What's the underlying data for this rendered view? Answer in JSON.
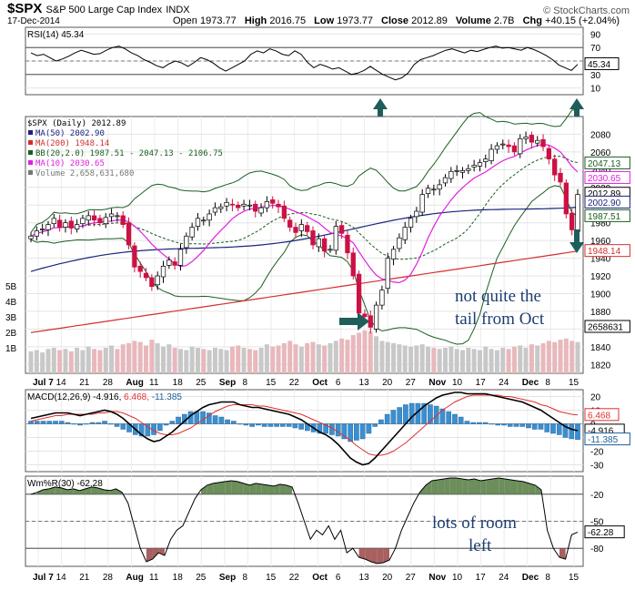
{
  "header": {
    "symbol": "$SPX",
    "name": "S&P 500 Large Cap Index",
    "exchange": "INDX",
    "date": "17-Dec-2014",
    "open_label": "Open",
    "open": "1973.77",
    "high_label": "High",
    "high": "2016.75",
    "low_label": "Low",
    "low": "1973.77",
    "close_label": "Close",
    "close": "2012.89",
    "volume_label": "Volume",
    "volume": "2.7B",
    "chg_label": "Chg",
    "chg": "+40.15 (+2.04%)",
    "brand": "© StockCharts.com"
  },
  "colors": {
    "up": "#ffffff",
    "down": "#cc1144",
    "ma50": "#1a237e",
    "ma200": "#d32f2f",
    "bb": "#1b5e20",
    "ma10": "#e020e0",
    "volume": "#c8c8c8",
    "histogram": "#3a8fd0",
    "wm_fill": "#6b8e5a",
    "wm_fill_low": "#a86060",
    "arrow": "#1e5e5a"
  },
  "chart_data": [
    {
      "type": "line",
      "title": "RSI(14) 45.34",
      "yticks": [
        90,
        70,
        50,
        30,
        10
      ],
      "ylim": [
        0,
        100
      ],
      "value_label": "45.34",
      "values": [
        62,
        58,
        60,
        55,
        50,
        53,
        57,
        62,
        66,
        63,
        60,
        61,
        66,
        70,
        72,
        68,
        62,
        58,
        52,
        48,
        43,
        40,
        46,
        50,
        47,
        42,
        48,
        55,
        52,
        47,
        40,
        35,
        40,
        45,
        50,
        60,
        65,
        62,
        68,
        65,
        60,
        58,
        65,
        60,
        48,
        40,
        45,
        42,
        38,
        40,
        35,
        30,
        32,
        36,
        42,
        36,
        30,
        26,
        22,
        25,
        32,
        45,
        52,
        55,
        58,
        62,
        66,
        68,
        65,
        62,
        66,
        64,
        67,
        70,
        72,
        69,
        70,
        68,
        66,
        70,
        67,
        63,
        58,
        52,
        44,
        40,
        36,
        45
      ]
    },
    {
      "type": "candlestick",
      "title": "$SPX (Daily) 2012.89",
      "legend": [
        "MA(50) 2002.90",
        "MA(200) 1948.14",
        "BB(20,2.0) 1987.51 - 2047.13 - 2106.75",
        "MA(10) 2030.65",
        "Volume 2,658,631,680"
      ],
      "ylim": [
        1810,
        2100
      ],
      "yticks": [
        2080,
        2060,
        2040,
        2020,
        2000,
        1980,
        1960,
        1940,
        1920,
        1900,
        1880,
        1860,
        1840,
        1820
      ],
      "volume_ticks": [
        "5B",
        "4B",
        "3B",
        "2B",
        "1B"
      ],
      "last_value_labels": [
        {
          "text": "2047.13",
          "value": 2047.13,
          "color": "#1b5e20"
        },
        {
          "text": "2030.65",
          "value": 2030.65,
          "color": "#e020e0"
        },
        {
          "text": "2012.89",
          "value": 2012.89,
          "color": "#000000"
        },
        {
          "text": "2002.90",
          "value": 2002.9,
          "color": "#1a237e"
        },
        {
          "text": "1987.51",
          "value": 1987.51,
          "color": "#1b5e20"
        },
        {
          "text": "1948.14",
          "value": 1948.14,
          "color": "#d32f2f"
        }
      ],
      "volume_label": "2658631",
      "closes": [
        1965,
        1971,
        1973,
        1978,
        1985,
        1975,
        1980,
        1974,
        1978,
        1985,
        1988,
        1983,
        1980,
        1986,
        1990,
        1988,
        1978,
        1955,
        1930,
        1925,
        1918,
        1908,
        1920,
        1931,
        1938,
        1932,
        1950,
        1965,
        1975,
        1985,
        1983,
        1990,
        1997,
        1998,
        2003,
        2000,
        1997,
        2001,
        2000,
        1993,
        1997,
        2004,
        2002,
        1998,
        1985,
        1975,
        1969,
        1978,
        1970,
        1955,
        1962,
        1948,
        1950,
        1976,
        1968,
        1946,
        1920,
        1878,
        1874,
        1862,
        1887,
        1904,
        1940,
        1950,
        1963,
        1975,
        1985,
        1993,
        2012,
        2019,
        2018,
        2023,
        2031,
        2038,
        2039,
        2039,
        2041,
        2045,
        2048,
        2052,
        2063,
        2067,
        2069,
        2066,
        2060,
        2075,
        2077,
        2071,
        2073,
        2066,
        2052,
        2034,
        2026,
        1990,
        1972,
        2012
      ],
      "volumes": [
        1.9,
        2.0,
        1.8,
        2.1,
        2.2,
        2.0,
        2.1,
        1.9,
        2.2,
        2.0,
        2.3,
        2.1,
        2.0,
        2.2,
        2.4,
        2.1,
        2.5,
        2.6,
        2.8,
        2.7,
        2.4,
        2.9,
        2.6,
        2.3,
        2.5,
        2.2,
        2.1,
        2.0,
        2.3,
        2.2,
        2.1,
        2.0,
        2.2,
        2.1,
        2.0,
        2.3,
        2.4,
        2.2,
        2.1,
        2.0,
        2.2,
        2.5,
        2.3,
        2.4,
        2.6,
        2.8,
        2.5,
        2.3,
        2.6,
        2.7,
        2.5,
        2.4,
        2.6,
        2.8,
        3.0,
        2.9,
        3.3,
        3.5,
        3.7,
        3.6,
        3.2,
        2.8,
        2.7,
        2.6,
        2.5,
        2.4,
        2.3,
        2.4,
        2.5,
        2.3,
        2.2,
        2.1,
        2.2,
        2.3,
        2.1,
        2.0,
        2.2,
        2.1,
        2.0,
        2.3,
        2.1,
        2.0,
        2.2,
        2.1,
        2.3,
        2.4,
        2.2,
        2.5,
        2.4,
        2.6,
        2.8,
        2.7,
        2.9,
        3.0,
        2.8,
        2.7
      ]
    },
    {
      "type": "line",
      "title": "MACD(12,26,9) -4.916, 6.468, -11.385",
      "title_parts": [
        "MACD(12,26,9)",
        "-4.916,",
        "6.468,",
        "-11.385"
      ],
      "ylim": [
        -35,
        25
      ],
      "yticks": [
        20,
        10,
        0,
        -10,
        -20,
        -30
      ],
      "value_labels": [
        "6.468",
        "-4.916",
        "-11.385"
      ],
      "macd": [
        4,
        5,
        6,
        7,
        8,
        8,
        8,
        7,
        6,
        7,
        8,
        9,
        10,
        9,
        7,
        4,
        0,
        -4,
        -8,
        -11,
        -13,
        -12,
        -9,
        -6,
        -2,
        2,
        6,
        9,
        12,
        14,
        15,
        16,
        16,
        16,
        14,
        13,
        12,
        12,
        11,
        10,
        9,
        8,
        7,
        5,
        3,
        0,
        -3,
        -6,
        -8,
        -11,
        -15,
        -20,
        -25,
        -28,
        -30,
        -29,
        -25,
        -20,
        -15,
        -10,
        -5,
        0,
        5,
        9,
        13,
        16,
        19,
        21,
        22,
        23,
        23,
        22,
        22,
        22,
        22,
        21,
        20,
        19,
        18,
        17,
        16,
        14,
        12,
        10,
        7,
        4,
        1,
        -2,
        -4,
        -5
      ],
      "signal": [
        2,
        3,
        4,
        5,
        6,
        6,
        7,
        7,
        7,
        7,
        7,
        8,
        8,
        9,
        9,
        8,
        6,
        4,
        1,
        -2,
        -5,
        -7,
        -8,
        -8,
        -7,
        -5,
        -3,
        0,
        3,
        6,
        9,
        11,
        13,
        14,
        14,
        14,
        14,
        13,
        13,
        12,
        11,
        10,
        9,
        8,
        7,
        5,
        3,
        1,
        -1,
        -3,
        -6,
        -9,
        -12,
        -16,
        -19,
        -22,
        -23,
        -23,
        -22,
        -20,
        -17,
        -14,
        -10,
        -6,
        -2,
        2,
        6,
        10,
        13,
        16,
        18,
        20,
        21,
        21,
        21,
        21,
        21,
        20,
        20,
        19,
        18,
        17,
        16,
        14,
        13,
        11,
        9,
        8,
        7,
        6.5
      ],
      "histogram": [
        2,
        2,
        2,
        2,
        2,
        2,
        1,
        0,
        -1,
        0,
        1,
        1,
        2,
        0,
        -2,
        -4,
        -6,
        -8,
        -9,
        -9,
        -8,
        -5,
        -1,
        2,
        5,
        7,
        9,
        9,
        9,
        8,
        6,
        5,
        3,
        2,
        0,
        -1,
        -2,
        -1,
        -2,
        -2,
        -2,
        -2,
        -2,
        -3,
        -4,
        -5,
        -6,
        -7,
        -7,
        -8,
        -9,
        -11,
        -13,
        -12,
        -11,
        -7,
        -2,
        3,
        7,
        10,
        12,
        14,
        15,
        15,
        15,
        14,
        13,
        11,
        9,
        7,
        5,
        2,
        1,
        1,
        1,
        0,
        -1,
        -1,
        -2,
        -2,
        -2,
        -3,
        -4,
        -4,
        -6,
        -7,
        -8,
        -10,
        -11,
        -11.5
      ]
    },
    {
      "type": "line",
      "title": "Wm%R(30) -62.28",
      "ylim": [
        -100,
        0
      ],
      "yticks": [
        -20,
        -50,
        -80
      ],
      "value_label": "-62.28",
      "values": [
        -20,
        -18,
        -15,
        -14,
        -12,
        -13,
        -15,
        -14,
        -16,
        -14,
        -12,
        -13,
        -15,
        -16,
        -14,
        -18,
        -30,
        -55,
        -80,
        -95,
        -92,
        -85,
        -88,
        -70,
        -60,
        -55,
        -40,
        -25,
        -15,
        -10,
        -8,
        -7,
        -6,
        -5,
        -6,
        -8,
        -10,
        -8,
        -9,
        -10,
        -11,
        -9,
        -10,
        -12,
        -30,
        -50,
        -70,
        -60,
        -65,
        -55,
        -70,
        -60,
        -85,
        -80,
        -90,
        -92,
        -95,
        -97,
        -96,
        -93,
        -80,
        -60,
        -45,
        -30,
        -18,
        -10,
        -5,
        -4,
        -3,
        -2,
        -2,
        -3,
        -4,
        -3,
        -5,
        -4,
        -3,
        -2,
        -3,
        -4,
        -5,
        -6,
        -8,
        -10,
        -15,
        -60,
        -80,
        -90,
        -92,
        -65,
        -62
      ]
    }
  ],
  "x_axis": [
    "Jul 7",
    "14",
    "21",
    "28",
    "Aug",
    "11",
    "18",
    "25",
    "Sep",
    "8",
    "15",
    "22",
    "Oct",
    "6",
    "13",
    "20",
    "27",
    "Nov",
    "10",
    "17",
    "24",
    "Dec",
    "8",
    "15"
  ],
  "annotations": {
    "oct_tail": "not quite the tail from Oct",
    "oct_tail_line1": "not quite the",
    "oct_tail_line2": "tail from Oct",
    "room_left": "lots of room left",
    "room_left_line1": "lots of room",
    "room_left_line2": "left"
  }
}
